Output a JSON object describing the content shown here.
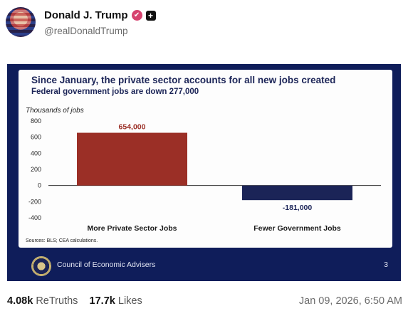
{
  "post": {
    "display_name": "Donald J. Trump",
    "handle": "@realDonaldTrump",
    "verified_icon": "verified-badge-icon",
    "plus_icon": "plus-badge-icon",
    "retruths_count": "4.08k",
    "retruths_label": "ReTruths",
    "likes_count": "17.7k",
    "likes_label": "Likes",
    "timestamp": "Jan 09, 2026, 6:50 AM"
  },
  "slide": {
    "title": "Since January, the private sector accounts for all new jobs created",
    "subtitle": "Federal government jobs are down 277,000",
    "sources": "Sources: BLS; CEA calculations.",
    "footer_label": "Council of Economic Advisers",
    "page_number": "3"
  },
  "chart_data": {
    "type": "bar",
    "ylabel": "Thousands of jobs",
    "categories": [
      "More Private Sector Jobs",
      "Fewer Government Jobs"
    ],
    "values": [
      654,
      -181
    ],
    "data_labels": [
      "654,000",
      "-181,000"
    ],
    "colors": [
      "#9b2f26",
      "#1b2457"
    ],
    "ylim": [
      -400,
      800
    ],
    "yticks": [
      800,
      600,
      400,
      200,
      0,
      -200,
      -400
    ],
    "ytick_labels": [
      "800",
      "600",
      "400",
      "200",
      "0",
      "-200",
      "-400"
    ],
    "grid": false
  }
}
